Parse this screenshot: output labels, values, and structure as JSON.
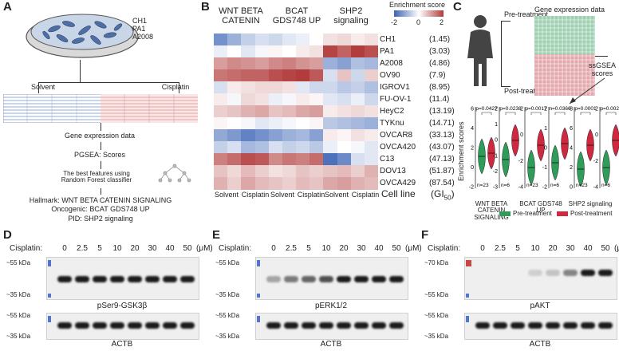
{
  "panelA": {
    "label": "A",
    "cell_lines": [
      "CH1",
      "PA1",
      "A2008"
    ],
    "solvent": "Solvent",
    "cisplatin": "Cisplatin",
    "gene_expression": "Gene expression data",
    "pgsea": "PGSEA: Scores",
    "best_features_1": "The best features using",
    "best_features_2": "Random Forest classifier",
    "hallmark": "Hallmark: WNT BETA CATENIN SIGNALING",
    "oncogenic": "Oncogenic: BCAT GDS748 UP",
    "pid": "PID: SHP2 signaling"
  },
  "panelB": {
    "label": "B",
    "col_groups": [
      {
        "line1": "WNT BETA",
        "line2": "CATENIN"
      },
      {
        "line1": "BCAT",
        "line2": "GDS748 UP"
      },
      {
        "line1": "SHP2",
        "line2": "signaling"
      }
    ],
    "legend_title": "Enrichment score",
    "legend_ticks": [
      "-2",
      "0",
      "2"
    ],
    "rows": [
      {
        "name": "CH1",
        "gi": "(1.45)"
      },
      {
        "name": "PA1",
        "gi": "(3.03)"
      },
      {
        "name": "A2008",
        "gi": "(4.86)"
      },
      {
        "name": "OV90",
        "gi": "(7.9)"
      },
      {
        "name": "IGROV1",
        "gi": "(8.95)"
      },
      {
        "name": "FU-OV-1",
        "gi": "(11.4)"
      },
      {
        "name": "HeyC2",
        "gi": "(13.19)"
      },
      {
        "name": "TYKnu",
        "gi": "(14.71)"
      },
      {
        "name": "OVCAR8",
        "gi": "(33.13)"
      },
      {
        "name": "OVCA420",
        "gi": "(43.07)"
      },
      {
        "name": "C13",
        "gi": "(47.13)"
      },
      {
        "name": "DOV13",
        "gi": "(51.87)"
      },
      {
        "name": "OVCA429",
        "gi": "(87.54)"
      }
    ],
    "x_labels": [
      "Solvent",
      "Cisplatin",
      "Solvent",
      "Cisplatin",
      "Solvent",
      "Cisplatin"
    ],
    "cell_line_label": "Cell line",
    "gi_label": "(GI50)",
    "values": [
      [
        -1.4,
        -1.0,
        -0.6,
        -0.4,
        -0.5,
        -0.3,
        -0.2,
        0.0,
        0.3,
        0.4,
        0.2,
        0.3
      ],
      [
        -0.2,
        0.0,
        -0.3,
        -0.1,
        0.1,
        0.0,
        0.2,
        0.3,
        1.9,
        1.6,
        2.0,
        1.8
      ],
      [
        1.0,
        1.2,
        1.1,
        1.0,
        1.2,
        1.3,
        1.1,
        1.0,
        -1.0,
        -1.2,
        -0.8,
        -0.9
      ],
      [
        1.4,
        1.5,
        1.6,
        1.6,
        1.8,
        1.9,
        2.0,
        1.7,
        -0.4,
        0.6,
        -0.5,
        0.5
      ],
      [
        -0.4,
        0.2,
        0.3,
        0.4,
        0.4,
        0.3,
        -0.3,
        -0.5,
        -0.5,
        -0.7,
        -0.6,
        -0.8
      ],
      [
        0.2,
        -0.1,
        0.4,
        0.3,
        -0.2,
        -0.1,
        0.2,
        0.1,
        -0.3,
        -0.4,
        -0.2,
        -0.5
      ],
      [
        0.5,
        0.6,
        0.8,
        0.9,
        0.6,
        0.7,
        0.9,
        1.0,
        0.2,
        0.3,
        0.4,
        0.3
      ],
      [
        0.1,
        0.0,
        -0.1,
        -0.3,
        -0.2,
        -0.1,
        0.0,
        0.1,
        -0.7,
        -0.8,
        -0.9,
        -1.0
      ],
      [
        -1.1,
        -1.3,
        -1.6,
        -1.4,
        -1.2,
        -1.0,
        -0.9,
        -1.2,
        0.2,
        0.1,
        0.3,
        0.2
      ],
      [
        -0.6,
        -0.4,
        -0.9,
        -0.8,
        -0.4,
        -0.6,
        -0.5,
        -0.7,
        -0.2,
        0.0,
        -0.1,
        -0.3
      ],
      [
        1.3,
        1.5,
        1.8,
        1.7,
        1.2,
        1.4,
        1.3,
        1.5,
        -1.8,
        -1.5,
        -0.4,
        -0.3
      ],
      [
        0.6,
        0.4,
        0.7,
        0.5,
        0.3,
        0.4,
        0.6,
        0.5,
        0.6,
        0.7,
        0.5,
        0.8
      ],
      [
        0.8,
        0.5,
        0.9,
        0.7,
        0.6,
        0.5,
        0.7,
        0.6,
        0.9,
        1.0,
        0.8,
        0.7
      ]
    ]
  },
  "panelC": {
    "label": "C",
    "pre": "Pre-treatment",
    "post": "Post-treatment",
    "gene_expression": "Gene expression data",
    "ssgsea_1": "ssGSEA",
    "ssgsea_2": "scores",
    "yaxis": "Enrichment scores",
    "legend_pre": "Pre-treatment",
    "legend_post": "Post-treatment",
    "pre_color": "#2f9c5a",
    "post_color": "#d0293f",
    "plots": [
      {
        "p": "p=0.0427",
        "n": "n=23",
        "ticks": [
          "6",
          "4",
          "2",
          "0",
          "-2"
        ]
      },
      {
        "p": "p=0.0238",
        "n": "n=6",
        "ticks": [
          "2",
          "1",
          "0",
          "-1",
          "-2",
          "-3"
        ]
      },
      {
        "p": "p=0.0017",
        "n": "n=23",
        "ticks": [
          "2",
          "0",
          "-2",
          "-4"
        ]
      },
      {
        "p": "n=0.0366",
        "n": "n=6",
        "ticks": [
          "2",
          "1",
          "0",
          "-1",
          "-2"
        ]
      },
      {
        "p": "p=0.0001",
        "n": "n=23",
        "ticks": [
          "8",
          "6",
          "4",
          "2",
          "0"
        ]
      },
      {
        "p": "p=0.0023",
        "n": "n=6",
        "ticks": [
          "2",
          "0",
          "-2",
          "-4"
        ]
      }
    ],
    "group_labels": [
      {
        "l1": "WNT BETA CATENIN",
        "l2": "SIGNALING"
      },
      {
        "l1": "BCAT GDS748 UP",
        "l2": ""
      },
      {
        "l1": "SHP2 signaling",
        "l2": ""
      }
    ]
  },
  "westerns": {
    "conc_label": "Cisplatin:",
    "concs": [
      "0",
      "2.5",
      "5",
      "10",
      "20",
      "30",
      "40",
      "50"
    ],
    "unit": "(μM)",
    "panels": [
      {
        "label": "D",
        "top_marker_hi": "~55 kDa",
        "top_marker_lo": "~35 kDa",
        "top_protein": "pSer9-GSK3β",
        "bot_marker_hi": "~55 kDa",
        "bot_marker_lo": "~35 kDa",
        "bot_protein": "ACTB"
      },
      {
        "label": "E",
        "top_marker_hi": "~55 kDa",
        "top_marker_lo": "~35 kDa",
        "top_protein": "pERK1/2",
        "bot_marker_hi": "~55 kDa",
        "bot_marker_lo": "~35 kDa",
        "bot_protein": "ACTB"
      },
      {
        "label": "F",
        "top_marker_hi": "~70 kDa",
        "top_marker_lo": "~55 kDa",
        "top_protein": "pAKT",
        "bot_marker_hi": "~55 kDa",
        "bot_marker_lo": "~35 kDa",
        "bot_protein": "ACTB"
      }
    ]
  }
}
